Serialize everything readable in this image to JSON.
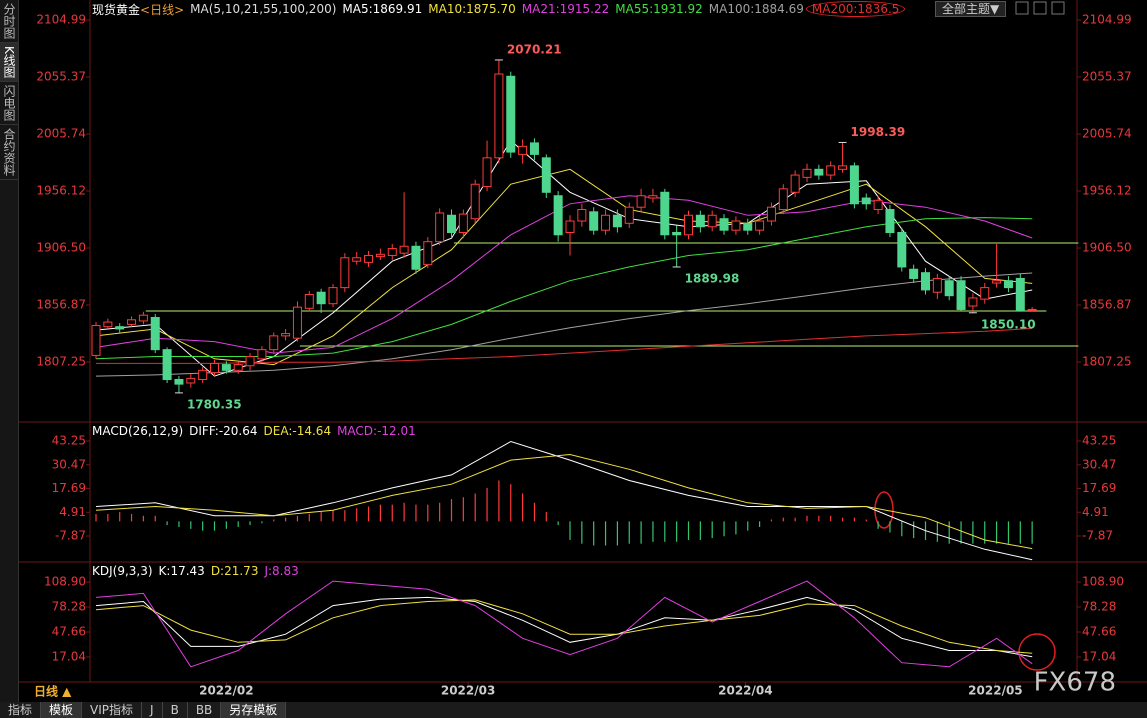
{
  "sidebar": {
    "items": [
      "分时图",
      "K线图",
      "闪电图",
      "合约资料"
    ],
    "active": 1
  },
  "theme_button": "全部主题▼",
  "period": "日线 ▲",
  "watermark": "FX678",
  "toolbar": {
    "items": [
      "指标",
      "模板",
      "VIP指标",
      "J",
      "B",
      "BB",
      "另存模板"
    ]
  },
  "chart_data": [
    {
      "type": "candlestick",
      "title": "现货黄金",
      "subtitle": "<日线>",
      "indicator": "MA(5,10,21,55,100,200)",
      "up_color": "#ff3b3b",
      "down_color": "#4fd68e",
      "open": [
        1813,
        1838,
        1838,
        1840,
        1843,
        1846,
        1818,
        1792,
        1789,
        1792,
        1798,
        1805,
        1800,
        1804,
        1810,
        1818,
        1830,
        1828,
        1854,
        1868,
        1858,
        1872,
        1895,
        1894,
        1899,
        1900,
        1902,
        1908,
        1892,
        1912,
        1935,
        1920,
        1932,
        1960,
        1985,
        2056,
        1988,
        1998,
        1985,
        1952,
        1920,
        1930,
        1938,
        1922,
        1935,
        1928,
        1942,
        1950,
        1955,
        1920,
        1918,
        1935,
        1925,
        1932,
        1922,
        1928,
        1922,
        1930,
        1940,
        1955,
        1968,
        1975,
        1970,
        1975,
        1978,
        1950,
        1940,
        1940,
        1920,
        1888,
        1885,
        1868,
        1878,
        1878,
        1856,
        1862,
        1876,
        1878,
        1880,
        1853
      ],
      "high": [
        1842,
        1845,
        1841,
        1847,
        1851,
        1849,
        1820,
        1795,
        1797,
        1803,
        1809,
        1808,
        1808,
        1815,
        1821,
        1833,
        1836,
        1860,
        1869,
        1871,
        1875,
        1902,
        1903,
        1904,
        1906,
        1910,
        1955,
        1912,
        1916,
        1941,
        1940,
        1940,
        1966,
        2000,
        2070.21,
        2060,
        2001,
        2002,
        1988,
        1956,
        1935,
        1945,
        1942,
        1940,
        1940,
        1946,
        1958,
        1958,
        1958,
        1926,
        1939,
        1939,
        1939,
        1936,
        1934,
        1932,
        1934,
        1946,
        1962,
        1974,
        1980,
        1979,
        1982,
        1998.39,
        1981,
        1954,
        1952,
        1944,
        1924,
        1892,
        1889,
        1884,
        1882,
        1882,
        1867,
        1876,
        1910,
        1882,
        1884,
        1855
      ],
      "low": [
        1810,
        1835,
        1833,
        1838,
        1840,
        1815,
        1789,
        1780.35,
        1785,
        1789,
        1795,
        1797,
        1797,
        1800,
        1807,
        1815,
        1826,
        1825,
        1851,
        1850,
        1855,
        1868,
        1892,
        1890,
        1896,
        1896,
        1898,
        1884,
        1889,
        1909,
        1916,
        1915,
        1928,
        1956,
        1980,
        1985,
        1980,
        1983,
        1950,
        1912,
        1900,
        1925,
        1918,
        1918,
        1920,
        1924,
        1938,
        1946,
        1914,
        1889.98,
        1914,
        1920,
        1921,
        1918,
        1918,
        1918,
        1918,
        1926,
        1936,
        1951,
        1964,
        1966,
        1966,
        1972,
        1941,
        1940,
        1936,
        1916,
        1886,
        1876,
        1866,
        1862,
        1861,
        1852,
        1850.1,
        1858,
        1872,
        1868,
        1851,
        1851
      ],
      "close": [
        1839,
        1842,
        1836,
        1844,
        1848,
        1818,
        1792,
        1788,
        1793,
        1800,
        1806,
        1800,
        1805,
        1812,
        1818,
        1830,
        1832,
        1855,
        1866,
        1858,
        1872,
        1898,
        1898,
        1900,
        1901,
        1906,
        1908,
        1888,
        1912,
        1937,
        1920,
        1936,
        1962,
        1985,
        2058,
        1990,
        1995,
        1988,
        1955,
        1918,
        1930,
        1940,
        1922,
        1935,
        1925,
        1942,
        1952,
        1952,
        1918,
        1918,
        1935,
        1925,
        1935,
        1922,
        1930,
        1922,
        1930,
        1942,
        1958,
        1970,
        1975,
        1970,
        1978,
        1978,
        1945,
        1945,
        1948,
        1920,
        1890,
        1880,
        1870,
        1880,
        1865,
        1853,
        1863,
        1872,
        1878,
        1872,
        1852,
        1853
      ],
      "series": [
        {
          "name": "MA5:1869.91",
          "color": "#ffffff",
          "x": [
            0,
            5,
            10,
            15,
            20,
            25,
            30,
            35,
            40,
            45,
            50,
            55,
            60,
            65,
            70,
            75,
            79
          ],
          "values": [
            1835,
            1840,
            1795,
            1812,
            1850,
            1895,
            1915,
            2000,
            1955,
            1932,
            1925,
            1928,
            1962,
            1965,
            1895,
            1862,
            1869.91
          ]
        },
        {
          "name": "MA10:1875.70",
          "color": "#f0e040",
          "x": [
            0,
            5,
            10,
            15,
            20,
            25,
            30,
            35,
            40,
            45,
            50,
            55,
            60,
            65,
            70,
            75,
            79
          ],
          "values": [
            1830,
            1836,
            1810,
            1805,
            1830,
            1872,
            1905,
            1962,
            1975,
            1940,
            1930,
            1928,
            1945,
            1962,
            1925,
            1880,
            1875.7
          ]
        },
        {
          "name": "MA21:1915.22",
          "color": "#e040e0",
          "x": [
            0,
            5,
            10,
            15,
            20,
            25,
            30,
            35,
            40,
            45,
            50,
            55,
            60,
            65,
            70,
            75,
            79
          ],
          "values": [
            1820,
            1828,
            1825,
            1815,
            1820,
            1845,
            1878,
            1918,
            1945,
            1952,
            1948,
            1935,
            1938,
            1948,
            1942,
            1930,
            1915.22
          ]
        },
        {
          "name": "MA55:1931.92",
          "color": "#40e040",
          "x": [
            0,
            5,
            10,
            15,
            20,
            25,
            30,
            35,
            40,
            45,
            50,
            55,
            60,
            65,
            70,
            75,
            79
          ],
          "values": [
            1810,
            1812,
            1812,
            1812,
            1815,
            1825,
            1840,
            1860,
            1878,
            1890,
            1900,
            1905,
            1915,
            1925,
            1932,
            1933,
            1931.92
          ]
        },
        {
          "name": "MA100:1884.69",
          "color": "#a0a0a0",
          "x": [
            0,
            5,
            10,
            15,
            20,
            25,
            30,
            35,
            40,
            45,
            50,
            55,
            60,
            65,
            70,
            75,
            79
          ],
          "values": [
            1795,
            1796,
            1798,
            1800,
            1804,
            1810,
            1818,
            1828,
            1837,
            1845,
            1852,
            1858,
            1865,
            1872,
            1878,
            1882,
            1884.69
          ]
        },
        {
          "name": "MA200:1836.5",
          "color": "#e03030",
          "x": [
            0,
            5,
            10,
            15,
            20,
            25,
            30,
            35,
            40,
            45,
            50,
            55,
            60,
            65,
            70,
            75,
            79
          ],
          "values": [
            1806,
            1806,
            1806,
            1807,
            1807,
            1808,
            1810,
            1812,
            1815,
            1818,
            1821,
            1824,
            1827,
            1830,
            1832,
            1834,
            1836.5
          ]
        }
      ],
      "hlines": [
        {
          "value": 1910.87,
          "from": 30.2,
          "to": 82.9,
          "color": "#b8f070"
        },
        {
          "value": 1851.67,
          "from": 4.2,
          "to": 80.2,
          "color": "#b8f070"
        },
        {
          "value": 1821.2,
          "from": 17.2,
          "to": 82.9,
          "color": "#b8f070"
        }
      ],
      "annotations": [
        {
          "index": 34,
          "value": 2070.21,
          "label": "2070.21",
          "color": "#ff5a5a",
          "side": "high"
        },
        {
          "index": 63,
          "value": 1998.39,
          "label": "1998.39",
          "color": "#ff5a5a",
          "side": "high"
        },
        {
          "index": 49,
          "value": 1889.98,
          "label": "1889.98",
          "color": "#60d890",
          "side": "low"
        },
        {
          "index": 74,
          "value": 1850.1,
          "label": "1850.10",
          "color": "#60d890",
          "side": "low"
        },
        {
          "index": 7,
          "value": 1780.35,
          "label": "1780.35",
          "color": "#60d890",
          "side": "low"
        }
      ],
      "ylim": [
        1756.76,
        2113.69
      ],
      "yticks": [
        2104.99,
        2055.37,
        2005.74,
        1956.12,
        {
          "value": 1906.5,
          "label": "1906.50"
        },
        1856.87,
        1807.25
      ],
      "xticks": [
        {
          "value": 11,
          "label": "2022/02"
        },
        {
          "value": 31.4,
          "label": "2022/03"
        },
        {
          "value": 54.8,
          "label": "2022/04"
        },
        {
          "value": 75.9,
          "label": "2022/05"
        }
      ]
    },
    {
      "type": "macd",
      "title": "MACD(26,12,9)",
      "up_color": "#ff3b3b",
      "down_color": "#34c66f",
      "histogram": {
        "name": "MACD:-12.01",
        "color": "#e040e0",
        "values": [
          4,
          4,
          5,
          4,
          3,
          3,
          -2,
          -3,
          -4,
          -5,
          -5,
          -4,
          -3,
          -2,
          -1,
          1,
          2,
          3,
          4,
          5,
          6,
          6,
          7,
          8,
          9,
          9,
          10,
          9,
          9,
          10,
          12,
          13,
          15,
          18,
          22,
          20,
          15,
          10,
          5,
          -2,
          -10,
          -12,
          -13,
          -13,
          -13,
          -12,
          -12,
          -11,
          -11,
          -11,
          -10,
          -10,
          -9,
          -8,
          -7,
          -5,
          -3,
          1,
          2,
          2,
          3,
          3,
          3,
          2,
          2,
          1,
          -4,
          -6,
          -8,
          -9,
          -10,
          -11,
          -12,
          -12,
          -12,
          -12,
          -12,
          -12,
          -12,
          -12.01
        ]
      },
      "series": [
        {
          "name": "DIFF:-20.64",
          "color": "#ffffff",
          "x": [
            0,
            5,
            10,
            15,
            20,
            25,
            30,
            35,
            40,
            45,
            50,
            55,
            60,
            65,
            70,
            75,
            79
          ],
          "values": [
            8,
            10,
            3,
            3,
            10,
            18,
            25,
            43,
            33,
            22,
            14,
            8,
            8,
            8,
            -5,
            -15,
            -20.64
          ]
        },
        {
          "name": "DEA:-14.64",
          "color": "#f0e040",
          "x": [
            0,
            5,
            10,
            15,
            20,
            25,
            30,
            35,
            40,
            45,
            50,
            55,
            60,
            65,
            70,
            75,
            79
          ],
          "values": [
            6,
            8,
            6,
            3,
            6,
            14,
            20,
            33,
            36,
            28,
            18,
            10,
            7,
            8,
            2,
            -10,
            -14.64
          ]
        }
      ],
      "ylim": [
        -20.78,
        50.25
      ],
      "yticks": [
        43.25,
        30.47,
        17.69,
        4.91,
        -7.87
      ]
    },
    {
      "type": "kdj",
      "title": "KDJ(9,3,3)",
      "series": [
        {
          "name": "K:17.43",
          "color": "#ffffff",
          "x": [
            0,
            4,
            8,
            12,
            16,
            20,
            24,
            28,
            32,
            36,
            40,
            44,
            48,
            52,
            56,
            60,
            64,
            68,
            72,
            76,
            79
          ],
          "values": [
            80,
            85,
            30,
            30,
            45,
            80,
            88,
            90,
            85,
            62,
            35,
            45,
            65,
            62,
            75,
            90,
            75,
            40,
            25,
            25,
            17.43
          ]
        },
        {
          "name": "D:21.73",
          "color": "#f0e040",
          "x": [
            0,
            4,
            8,
            12,
            16,
            20,
            24,
            28,
            32,
            36,
            40,
            44,
            48,
            52,
            56,
            60,
            64,
            68,
            72,
            76,
            79
          ],
          "values": [
            75,
            80,
            50,
            35,
            38,
            65,
            80,
            85,
            87,
            70,
            45,
            45,
            55,
            62,
            68,
            82,
            80,
            55,
            35,
            25,
            21.73
          ]
        },
        {
          "name": "J:8.83",
          "color": "#e040e0",
          "x": [
            0,
            4,
            8,
            12,
            16,
            20,
            24,
            28,
            32,
            36,
            40,
            44,
            48,
            52,
            56,
            60,
            64,
            68,
            72,
            76,
            79
          ],
          "values": [
            90,
            95,
            5,
            25,
            70,
            110,
            105,
            100,
            80,
            40,
            20,
            40,
            90,
            60,
            85,
            110,
            65,
            10,
            5,
            40,
            8.83
          ]
        }
      ],
      "ylim": [
        -13.58,
        128.5
      ],
      "yticks": [
        {
          "value": 108.9,
          "label": "108.90"
        },
        78.28,
        47.66,
        17.04
      ]
    }
  ]
}
